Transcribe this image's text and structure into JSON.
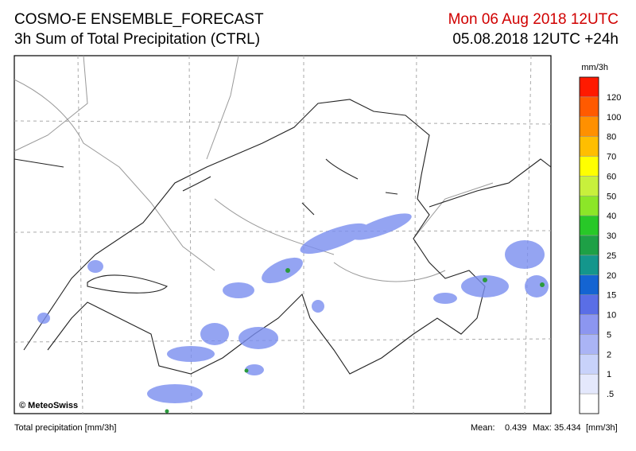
{
  "header": {
    "title": "COSMO-E ENSEMBLE_FORECAST",
    "subtitle": "3h Sum of Total Precipitation (CTRL)",
    "valid_time": "Mon 06 Aug 2018 12UTC",
    "run_time": "05.08.2018 12UTC +24h"
  },
  "legend": {
    "unit": "mm/3h",
    "labels": [
      "120",
      "100",
      "80",
      "70",
      "60",
      "50",
      "40",
      "30",
      "25",
      "20",
      "15",
      "10",
      "5",
      "2",
      "1",
      ".5"
    ],
    "colors": [
      "#ff1a00",
      "#ff5a00",
      "#ff9000",
      "#ffbe00",
      "#ffff00",
      "#c8f03c",
      "#8ce628",
      "#28c828",
      "#1ea046",
      "#14968c",
      "#1464d2",
      "#5a6ee6",
      "#8c96f0",
      "#aab4f5",
      "#c8d2fa",
      "#e4e8fc",
      "#ffffff"
    ]
  },
  "map": {
    "copyright": "© MeteoSwiss"
  },
  "footer": {
    "left": "Total precipitation [mm/3h]",
    "mean_label": "Mean:",
    "mean": "0.439",
    "max_label": "Max:",
    "max": "35.434",
    "unit": "[mm/3h]"
  }
}
